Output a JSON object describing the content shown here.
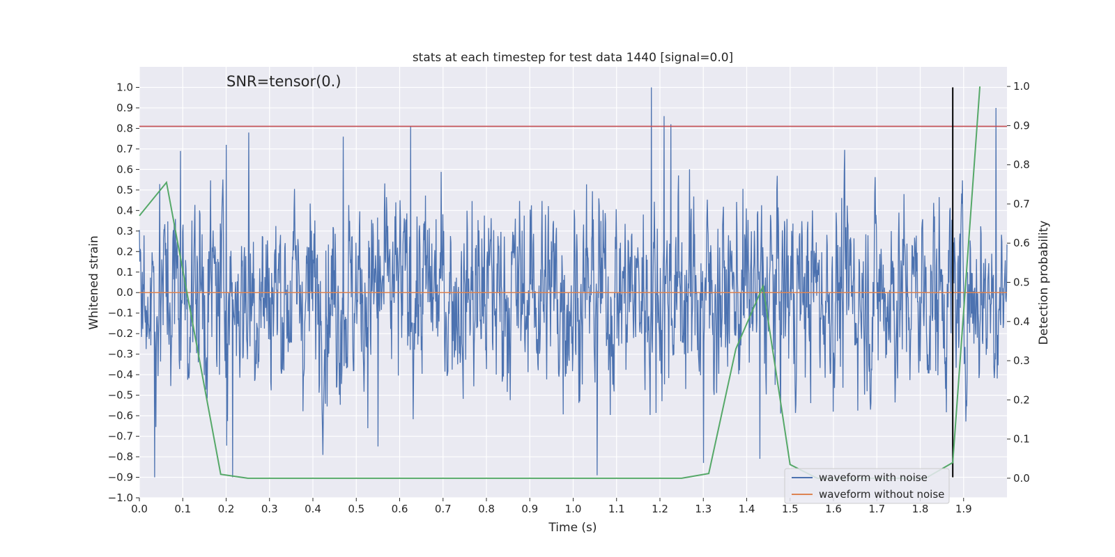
{
  "chart_data": {
    "type": "line",
    "title": "stats at each timestep for test data 1440 [signal=0.0]",
    "xlabel": "Time (s)",
    "ylabel": "Whitened strain",
    "y2label": "Detection probability",
    "annotation": "SNR=tensor(0.)",
    "xlim": [
      0.0,
      2.0
    ],
    "ylim": [
      -1.0,
      1.1
    ],
    "y2lim": [
      -0.05,
      1.05
    ],
    "xticks": [
      "0.0",
      "0.1",
      "0.2",
      "0.3",
      "0.4",
      "0.5",
      "0.6",
      "0.7",
      "0.8",
      "0.9",
      "1.0",
      "1.1",
      "1.2",
      "1.3",
      "1.4",
      "1.5",
      "1.6",
      "1.7",
      "1.8",
      "1.9"
    ],
    "yticks": [
      "-1.0",
      "-0.9",
      "-0.8",
      "-0.7",
      "-0.6",
      "-0.5",
      "-0.4",
      "-0.3",
      "-0.2",
      "-0.1",
      "0.0",
      "0.1",
      "0.2",
      "0.3",
      "0.4",
      "0.5",
      "0.6",
      "0.7",
      "0.8",
      "0.9",
      "1.0"
    ],
    "y2ticks": [
      "0.0",
      "0.1",
      "0.2",
      "0.3",
      "0.4",
      "0.5",
      "0.6",
      "0.7",
      "0.8",
      "0.9",
      "1.0"
    ],
    "grid": true,
    "legend_position": "bottom-right",
    "threshold": 0.81,
    "marker_time": 1.875,
    "series": [
      {
        "name": "waveform with noise",
        "color": "#4c72b0",
        "axis": "left",
        "approx_amplitude": 1.0,
        "n_points": 2048,
        "peaks": [
          [
            0.095,
            0.69
          ],
          [
            0.2,
            0.72
          ],
          [
            0.252,
            0.78
          ],
          [
            0.47,
            0.76
          ],
          [
            0.625,
            0.81
          ],
          [
            1.18,
            1.0
          ],
          [
            1.21,
            0.86
          ],
          [
            1.225,
            0.82
          ],
          [
            1.975,
            0.9
          ],
          [
            0.035,
            -0.9
          ],
          [
            0.215,
            -0.9
          ],
          [
            0.55,
            -0.75
          ],
          [
            1.055,
            -0.89
          ],
          [
            1.3,
            -0.83
          ],
          [
            1.43,
            -0.81
          ]
        ]
      },
      {
        "name": "waveform without noise",
        "color": "#dd8452",
        "axis": "left",
        "x": [
          0.0,
          2.0
        ],
        "values": [
          0.0,
          0.0
        ]
      },
      {
        "color": "#55a868",
        "axis": "right",
        "x": [
          0.0,
          0.0625,
          0.1875,
          0.25,
          0.3125,
          0.375,
          0.4375,
          0.5,
          0.5625,
          0.625,
          0.6875,
          0.75,
          0.8125,
          0.875,
          0.9375,
          1.0,
          1.0625,
          1.125,
          1.1875,
          1.25,
          1.3125,
          1.375,
          1.4375,
          1.5,
          1.5625,
          1.625,
          1.6875,
          1.75,
          1.8125,
          1.875,
          1.9375
        ],
        "values": [
          0.67,
          0.755,
          0.01,
          0.0,
          0.0,
          0.0,
          0.0,
          0.0,
          0.0,
          0.0,
          0.0,
          0.0,
          0.0,
          0.0,
          0.0,
          0.0,
          0.0,
          0.0,
          0.0,
          0.0,
          0.012,
          0.33,
          0.49,
          0.035,
          0.0,
          0.0,
          0.0,
          0.0,
          0.0,
          0.04,
          1.0
        ]
      }
    ]
  }
}
